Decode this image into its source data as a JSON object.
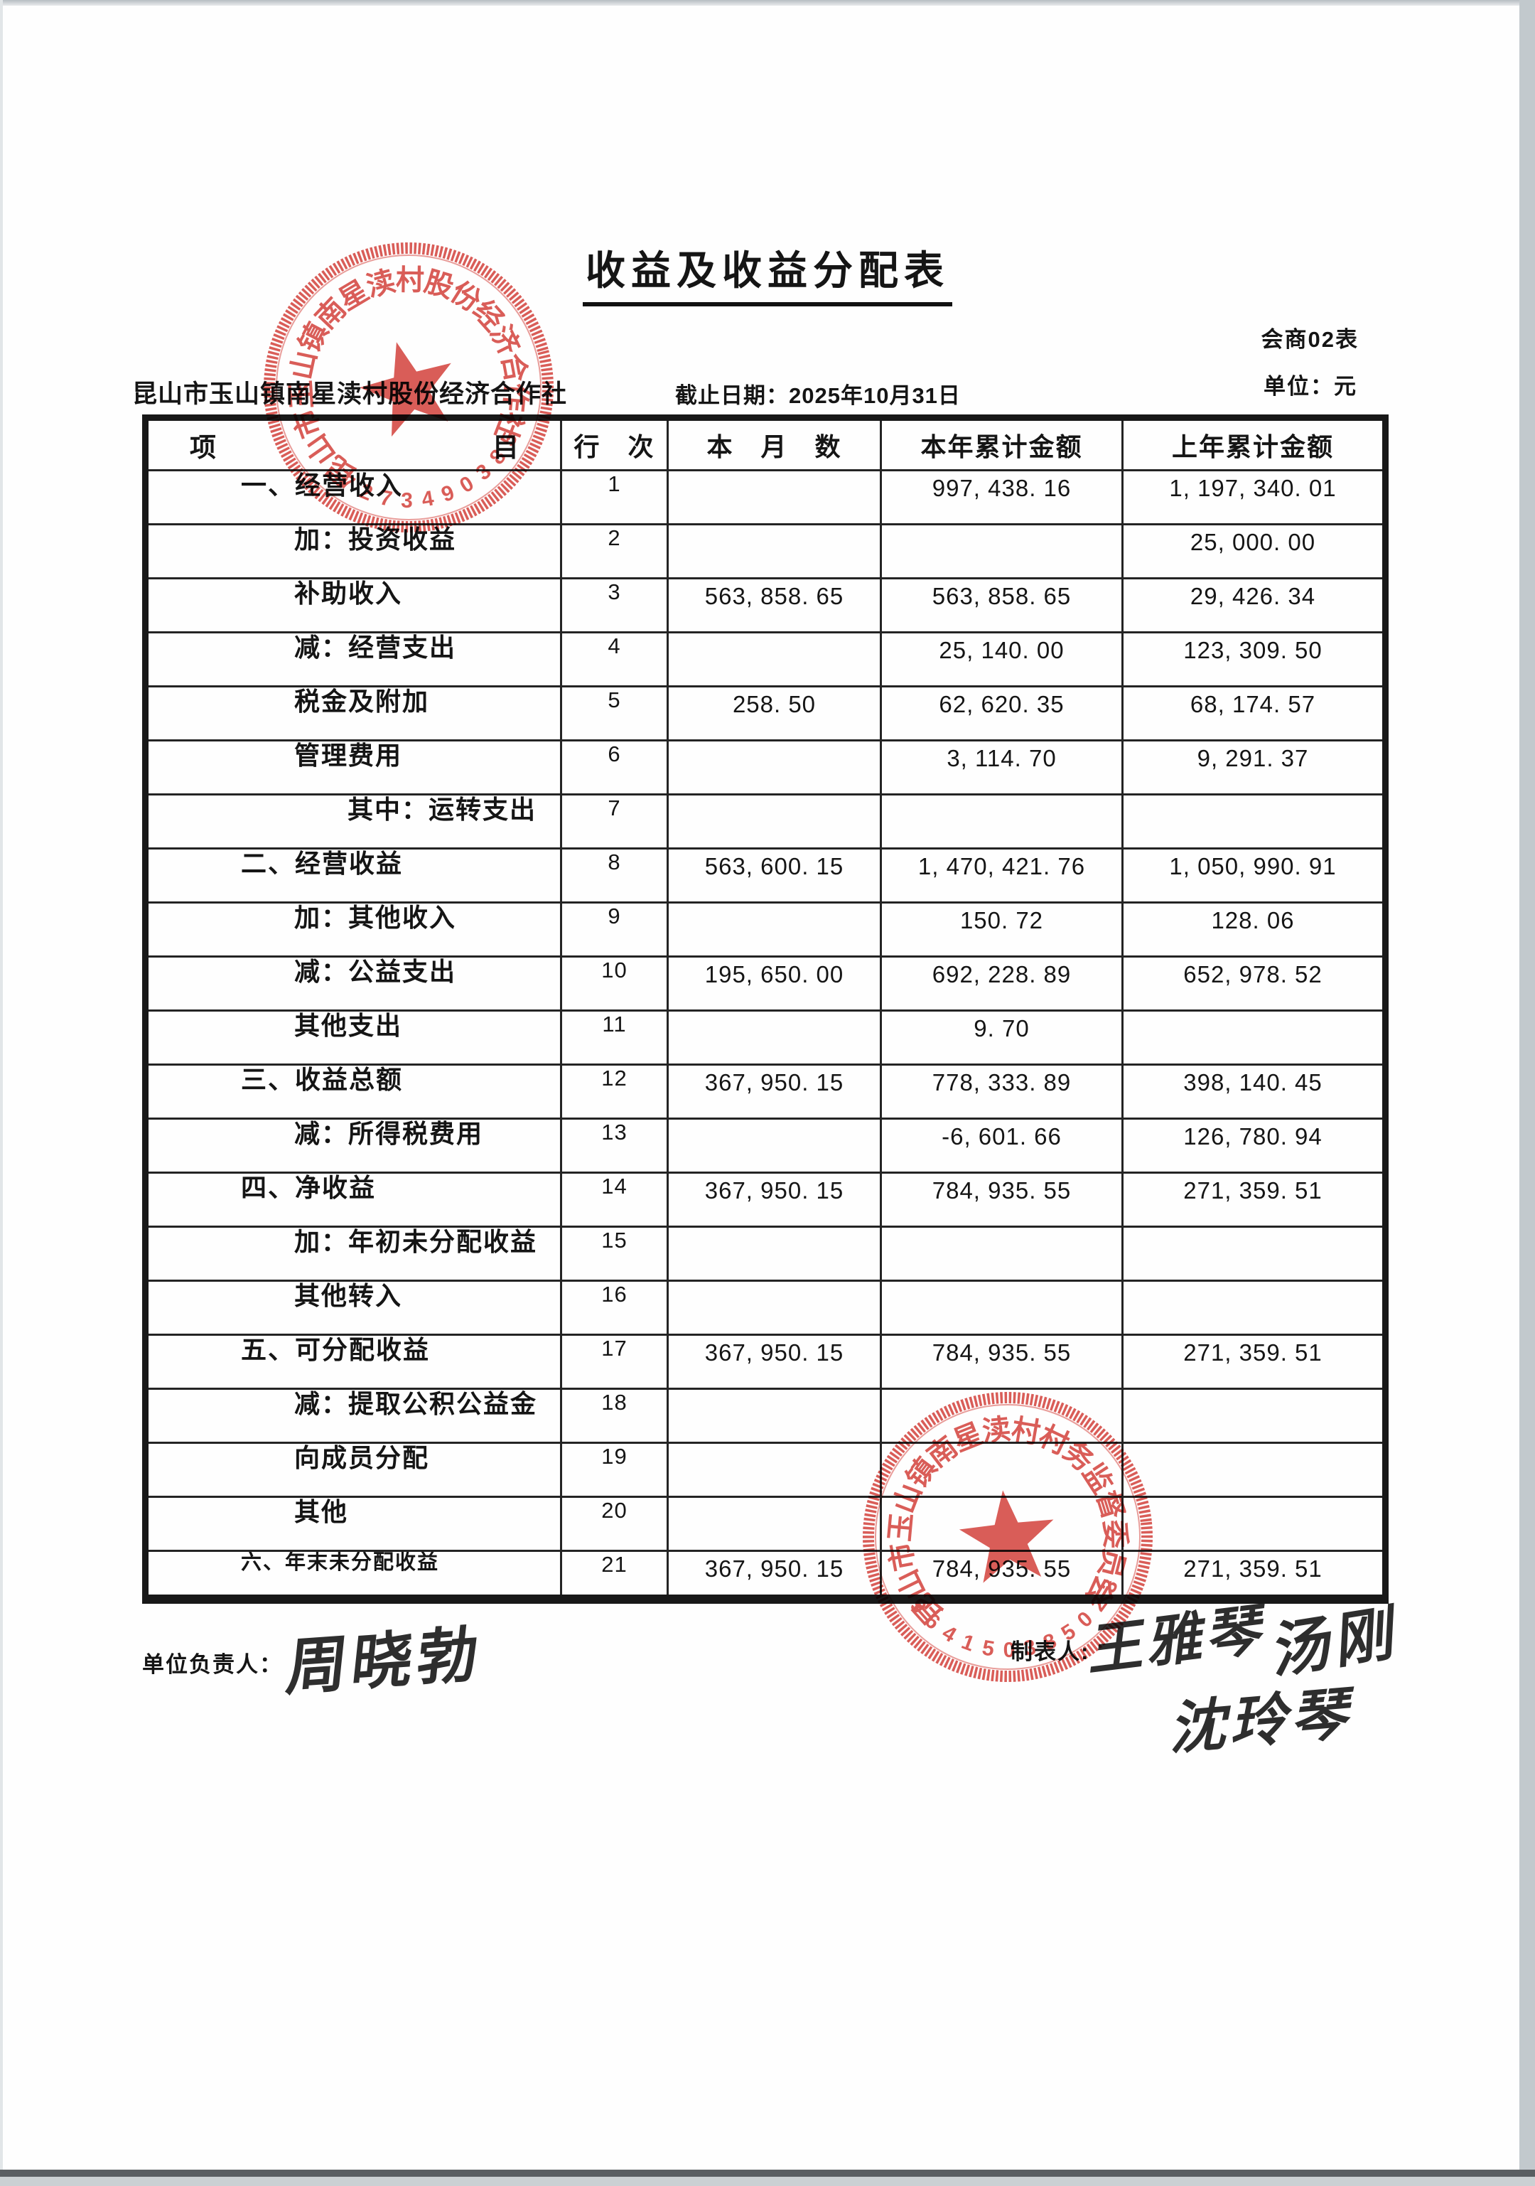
{
  "document": {
    "title": "收益及收益分配表",
    "form_code": "会商02表",
    "unit_label": "单位：元",
    "org_name": "昆山市玉山镇南星渎村股份经济合作社",
    "cutoff_label": "截止日期：2025年10月31日"
  },
  "table": {
    "headers": {
      "item_left": "项",
      "item_right": "目",
      "line_no": "行　次",
      "month": "本　月　数",
      "ytd": "本年累计金额",
      "prev_ytd": "上年累计金额"
    },
    "rows": [
      {
        "item": "一、经营收入",
        "line": "1",
        "month": "",
        "ytd": "997, 438. 16",
        "prev": "1, 197, 340. 01",
        "indent": 1,
        "small": false
      },
      {
        "item": "加：投资收益",
        "line": "2",
        "month": "",
        "ytd": "",
        "prev": "25, 000. 00",
        "indent": 2,
        "small": false
      },
      {
        "item": "补助收入",
        "line": "3",
        "month": "563, 858. 65",
        "ytd": "563, 858. 65",
        "prev": "29, 426. 34",
        "indent": 2,
        "small": false
      },
      {
        "item": "减：经营支出",
        "line": "4",
        "month": "",
        "ytd": "25, 140. 00",
        "prev": "123, 309. 50",
        "indent": 2,
        "small": false
      },
      {
        "item": "税金及附加",
        "line": "5",
        "month": "258. 50",
        "ytd": "62, 620. 35",
        "prev": "68, 174. 57",
        "indent": 2,
        "small": false
      },
      {
        "item": "管理费用",
        "line": "6",
        "month": "",
        "ytd": "3, 114. 70",
        "prev": "9, 291. 37",
        "indent": 2,
        "small": false
      },
      {
        "item": "其中：运转支出",
        "line": "7",
        "month": "",
        "ytd": "",
        "prev": "",
        "indent": 3,
        "small": false
      },
      {
        "item": "二、经营收益",
        "line": "8",
        "month": "563, 600. 15",
        "ytd": "1, 470, 421. 76",
        "prev": "1, 050, 990. 91",
        "indent": 1,
        "small": false
      },
      {
        "item": "加：其他收入",
        "line": "9",
        "month": "",
        "ytd": "150. 72",
        "prev": "128. 06",
        "indent": 2,
        "small": false
      },
      {
        "item": "减：公益支出",
        "line": "10",
        "month": "195, 650. 00",
        "ytd": "692, 228. 89",
        "prev": "652, 978. 52",
        "indent": 2,
        "small": false
      },
      {
        "item": "其他支出",
        "line": "11",
        "month": "",
        "ytd": "9. 70",
        "prev": "",
        "indent": 2,
        "small": false
      },
      {
        "item": "三、收益总额",
        "line": "12",
        "month": "367, 950. 15",
        "ytd": "778, 333. 89",
        "prev": "398, 140. 45",
        "indent": 1,
        "small": false
      },
      {
        "item": "减：所得税费用",
        "line": "13",
        "month": "",
        "ytd": "-6, 601. 66",
        "prev": "126, 780. 94",
        "indent": 2,
        "small": false
      },
      {
        "item": "四、净收益",
        "line": "14",
        "month": "367, 950. 15",
        "ytd": "784, 935. 55",
        "prev": "271, 359. 51",
        "indent": 1,
        "small": false
      },
      {
        "item": "加：年初未分配收益",
        "line": "15",
        "month": "",
        "ytd": "",
        "prev": "",
        "indent": 2,
        "small": false
      },
      {
        "item": "其他转入",
        "line": "16",
        "month": "",
        "ytd": "",
        "prev": "",
        "indent": 2,
        "small": false
      },
      {
        "item": "五、可分配收益",
        "line": "17",
        "month": "367, 950. 15",
        "ytd": "784, 935. 55",
        "prev": "271, 359. 51",
        "indent": 1,
        "small": false
      },
      {
        "item": "减：提取公积公益金",
        "line": "18",
        "month": "",
        "ytd": "",
        "prev": "",
        "indent": 2,
        "small": false
      },
      {
        "item": "向成员分配",
        "line": "19",
        "month": "",
        "ytd": "",
        "prev": "",
        "indent": 2,
        "small": false
      },
      {
        "item": "其他",
        "line": "20",
        "month": "",
        "ytd": "",
        "prev": "",
        "indent": 2,
        "small": false
      },
      {
        "item": "六、年末未分配收益",
        "line": "21",
        "month": "367, 950. 15",
        "ytd": "784, 935. 55",
        "prev": "271, 359. 51",
        "indent": 1,
        "small": true
      }
    ]
  },
  "footer": {
    "unit_head_label": "单位负责人：",
    "unit_head_signature": "周晓勃",
    "preparer_label": "制表人:",
    "preparer_signature": "王雅琴",
    "signature_right": "汤刚",
    "signature_bottom": "沈玲琴"
  },
  "stamps": [
    {
      "text": "昆山市玉山镇南星渎村股份经济合作社",
      "serial": "5830943727",
      "color": "#d8504b"
    },
    {
      "text": "昆山市玉山镇南星渎村村务监督委员会",
      "serial": "320583051469",
      "color": "#d8504b"
    }
  ]
}
